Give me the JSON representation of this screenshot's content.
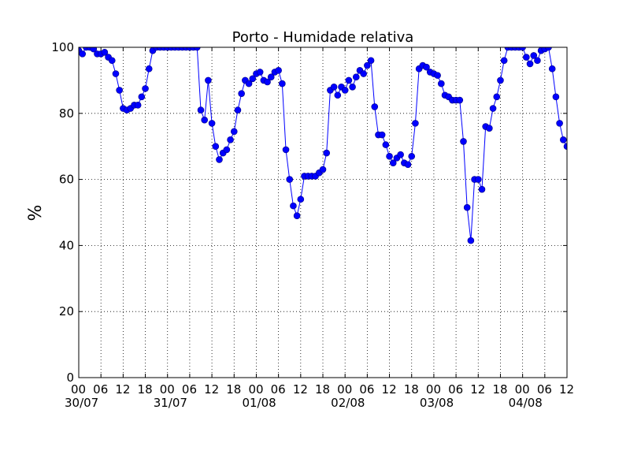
{
  "chart_data": {
    "type": "line",
    "title": "Porto - Humidade relativa",
    "y_label": "%",
    "x": [
      0,
      1,
      2,
      3,
      4,
      5,
      6,
      7,
      8,
      9,
      10,
      11,
      12,
      13,
      14,
      15,
      16,
      17,
      18,
      19,
      20,
      21,
      22,
      23,
      24,
      25,
      26,
      27,
      28,
      29,
      30,
      31,
      32,
      33,
      34,
      35,
      36,
      37,
      38,
      39,
      40,
      41,
      42,
      43,
      44,
      45,
      46,
      47,
      48,
      49,
      50,
      51,
      52,
      53,
      54,
      55,
      56,
      57,
      58,
      59,
      60,
      61,
      62,
      63,
      64,
      65,
      66,
      67,
      68,
      69,
      70,
      71,
      72,
      73,
      74,
      75,
      76,
      77,
      78,
      79,
      80,
      81,
      82,
      83,
      84,
      85,
      86,
      87,
      88,
      89,
      90,
      91,
      92,
      93,
      94,
      95,
      96,
      97,
      98,
      99,
      100,
      101,
      102,
      103,
      104,
      105,
      106,
      107,
      108,
      109,
      110,
      111,
      112,
      113,
      114,
      115,
      116,
      117,
      118,
      119,
      120,
      121,
      122,
      123,
      124,
      125,
      126,
      127,
      128,
      129,
      130,
      131,
      132
    ],
    "series": [
      {
        "name": "Humidade relativa",
        "color": "#0000ff",
        "values": [
          99,
          98,
          100,
          100,
          99.5,
          98,
          98,
          98.5,
          97,
          96,
          92,
          87,
          81.5,
          81,
          81.5,
          82.5,
          82.5,
          85,
          87.5,
          93.5,
          99,
          100,
          100,
          100,
          100,
          100,
          100,
          100,
          100,
          100,
          100,
          100,
          100,
          81,
          78,
          90,
          77,
          70,
          66,
          68,
          69,
          72,
          74.5,
          81,
          86,
          90,
          89,
          90.5,
          92,
          92.5,
          90,
          89.5,
          91,
          92.5,
          93,
          89,
          69,
          60,
          52,
          49,
          54,
          61,
          61,
          61,
          61,
          62,
          63,
          68,
          87,
          88,
          85.5,
          88,
          87,
          90,
          88,
          91,
          93,
          92,
          94.5,
          96,
          82,
          73.5,
          73.5,
          70.5,
          67,
          65,
          66.5,
          67.5,
          65,
          64.5,
          67,
          77,
          93.5,
          94.5,
          94,
          92.5,
          92,
          91.5,
          89,
          85.5,
          85,
          84,
          84,
          84,
          71.5,
          51.5,
          41.5,
          60,
          60,
          57,
          76,
          75.5,
          81.5,
          85,
          90,
          96,
          100,
          100,
          100,
          100,
          100,
          97,
          95,
          97.5,
          96,
          99,
          99.5,
          100,
          93.5,
          85,
          77,
          72,
          70
        ]
      }
    ],
    "xlim": [
      0,
      132
    ],
    "xticks": [
      {
        "value": 0,
        "label": "00\n30/07"
      },
      {
        "value": 6,
        "label": "06"
      },
      {
        "value": 12,
        "label": "12"
      },
      {
        "value": 18,
        "label": "18"
      },
      {
        "value": 24,
        "label": "00\n31/07"
      },
      {
        "value": 30,
        "label": "06"
      },
      {
        "value": 36,
        "label": "12"
      },
      {
        "value": 42,
        "label": "18"
      },
      {
        "value": 48,
        "label": "00\n01/08"
      },
      {
        "value": 54,
        "label": "06"
      },
      {
        "value": 60,
        "label": "12"
      },
      {
        "value": 66,
        "label": "18"
      },
      {
        "value": 72,
        "label": "00\n02/08"
      },
      {
        "value": 78,
        "label": "06"
      },
      {
        "value": 84,
        "label": "12"
      },
      {
        "value": 90,
        "label": "18"
      },
      {
        "value": 96,
        "label": "00\n03/08"
      },
      {
        "value": 102,
        "label": "06"
      },
      {
        "value": 108,
        "label": "12"
      },
      {
        "value": 114,
        "label": "18"
      },
      {
        "value": 120,
        "label": "00\n04/08"
      },
      {
        "value": 126,
        "label": "06"
      },
      {
        "value": 132,
        "label": "12"
      }
    ],
    "ylim": [
      0,
      100
    ],
    "yticks": [
      0,
      20,
      40,
      60,
      80,
      100
    ],
    "grid": true
  }
}
